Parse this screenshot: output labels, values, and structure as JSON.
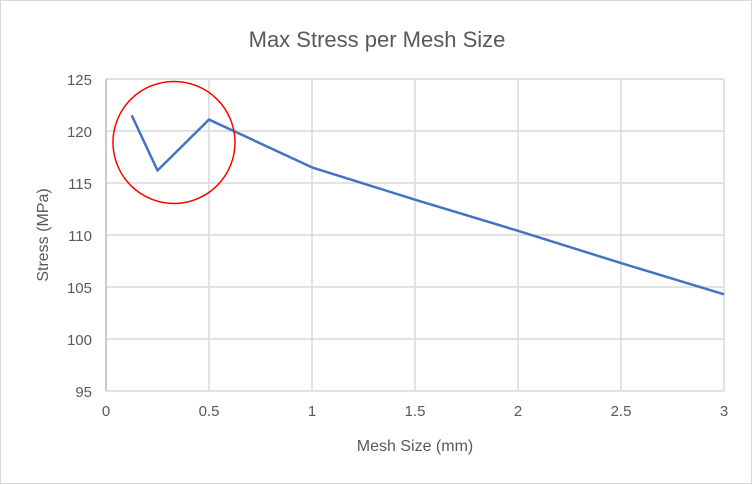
{
  "chart_data": {
    "type": "line",
    "title": "Max Stress per Mesh Size",
    "xlabel": "Mesh Size (mm)",
    "ylabel": "Stress (MPa)",
    "xlim": [
      0,
      3
    ],
    "ylim": [
      95,
      125
    ],
    "xticks": [
      0,
      0.5,
      1,
      1.5,
      2,
      2.5,
      3
    ],
    "xtick_labels": [
      "0",
      "0.5",
      "1",
      "1.5",
      "2",
      "2.5",
      "3"
    ],
    "yticks": [
      95,
      100,
      105,
      110,
      115,
      120,
      125
    ],
    "ytick_labels": [
      "95",
      "100",
      "105",
      "110",
      "115",
      "120",
      "125"
    ],
    "grid": true,
    "legend": "none",
    "series": [
      {
        "color": "#4472c4",
        "x": [
          0.125,
          0.25,
          0.5,
          1,
          1.5,
          2,
          2.5,
          3
        ],
        "y": [
          121.5,
          116.2,
          121.1,
          116.5,
          113.4,
          110.4,
          107.3,
          104.3
        ]
      }
    ],
    "annotations": [
      {
        "type": "circle",
        "color": "#ff0000",
        "center": [
          0.33,
          118.9
        ]
      }
    ]
  }
}
